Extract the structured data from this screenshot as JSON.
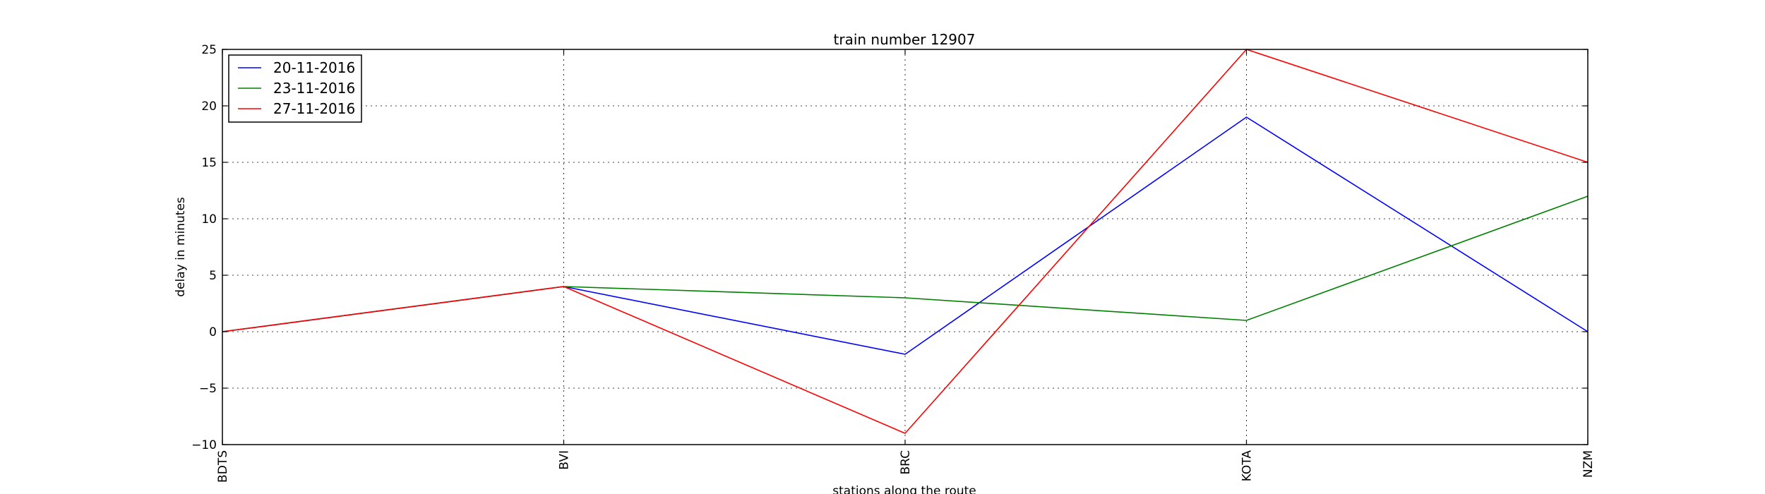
{
  "chart_data": {
    "type": "line",
    "title": "train number 12907",
    "xlabel": "stations along the route",
    "ylabel": "delay in minutes",
    "categories": [
      "BDTS",
      "BVI",
      "BRC",
      "KOTA",
      "NZM"
    ],
    "ylim": [
      -10,
      25
    ],
    "yticks": [
      -10,
      -5,
      0,
      5,
      10,
      15,
      20,
      25
    ],
    "ytick_labels": [
      "−10",
      "−5",
      "0",
      "5",
      "10",
      "15",
      "20",
      "25"
    ],
    "grid": true,
    "legend_position": "top-left",
    "series": [
      {
        "name": "20-11-2016",
        "color": "#0000ff",
        "values": [
          0,
          4,
          -2,
          19,
          0
        ]
      },
      {
        "name": "23-11-2016",
        "color": "#008000",
        "values": [
          0,
          4,
          3,
          1,
          12
        ]
      },
      {
        "name": "27-11-2016",
        "color": "#ff0000",
        "values": [
          0,
          4,
          -9,
          25,
          15
        ]
      }
    ]
  }
}
